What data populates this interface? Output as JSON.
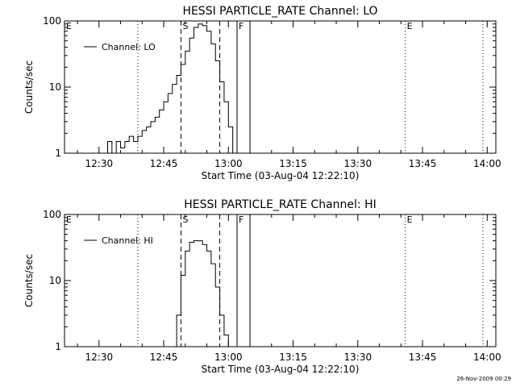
{
  "footer": {
    "date": "26-Nov-2009 00:29"
  },
  "chart_data": [
    {
      "type": "line",
      "title": "HESSI PARTICLE_RATE Channel: LO",
      "xlabel": "Start Time (03-Aug-04 12:22:10)",
      "ylabel": "Counts/sec",
      "xlim": [
        "12:22",
        "14:02"
      ],
      "ylim": [
        1,
        100
      ],
      "yscale": "log",
      "x_ticks": [
        "12:30",
        "12:45",
        "13:00",
        "13:15",
        "13:30",
        "13:45",
        "14:00"
      ],
      "y_ticks": [
        "1",
        "10",
        "100"
      ],
      "legend": {
        "placement": "top-left",
        "label": "Channel: LO"
      },
      "markers": [
        {
          "label": "E",
          "time": "12:22",
          "style": "none"
        },
        {
          "label": "",
          "time": "12:39",
          "style": "dotted"
        },
        {
          "label": "S",
          "time": "12:49",
          "style": "dashed"
        },
        {
          "label": "",
          "time": "12:58",
          "style": "dashed"
        },
        {
          "label": "F",
          "time": "13:02",
          "style": "solid"
        },
        {
          "label": "",
          "time": "13:05",
          "style": "solid"
        },
        {
          "label": "E",
          "time": "13:41",
          "style": "dotted"
        },
        {
          "label": "",
          "time": "13:59",
          "style": "dotted"
        }
      ],
      "series": [
        {
          "name": "Channel: LO",
          "x": [
            "12:31",
            "12:32",
            "12:33",
            "12:34",
            "12:35",
            "12:36",
            "12:37",
            "12:38",
            "12:39",
            "12:40",
            "12:41",
            "12:42",
            "12:43",
            "12:44",
            "12:45",
            "12:46",
            "12:47",
            "12:48",
            "12:49",
            "12:50",
            "12:51",
            "12:52",
            "12:53",
            "12:54",
            "12:55",
            "12:56",
            "12:57",
            "12:58",
            "12:59",
            "13:00",
            "13:01"
          ],
          "y": [
            1,
            1.5,
            1,
            1.5,
            1.2,
            1.5,
            1.8,
            1.5,
            1.8,
            2.2,
            2.5,
            3,
            3.5,
            4.5,
            6,
            8,
            11,
            15,
            22,
            35,
            55,
            80,
            90,
            85,
            70,
            45,
            25,
            12,
            6,
            2.5,
            1
          ]
        }
      ]
    },
    {
      "type": "line",
      "title": "HESSI PARTICLE_RATE Channel: HI",
      "xlabel": "Start Time (03-Aug-04 12:22:10)",
      "ylabel": "Counts/sec",
      "xlim": [
        "12:22",
        "14:02"
      ],
      "ylim": [
        1,
        100
      ],
      "yscale": "log",
      "x_ticks": [
        "12:30",
        "12:45",
        "13:00",
        "13:15",
        "13:30",
        "13:45",
        "14:00"
      ],
      "y_ticks": [
        "1",
        "10",
        "100"
      ],
      "legend": {
        "placement": "top-left",
        "label": "Channel: HI"
      },
      "markers": [
        {
          "label": "E",
          "time": "12:22",
          "style": "none"
        },
        {
          "label": "",
          "time": "12:39",
          "style": "dotted"
        },
        {
          "label": "S",
          "time": "12:49",
          "style": "dashed"
        },
        {
          "label": "",
          "time": "12:58",
          "style": "dashed"
        },
        {
          "label": "F",
          "time": "13:02",
          "style": "solid"
        },
        {
          "label": "",
          "time": "13:05",
          "style": "solid"
        },
        {
          "label": "E",
          "time": "13:41",
          "style": "dotted"
        },
        {
          "label": "",
          "time": "13:59",
          "style": "dotted"
        }
      ],
      "series": [
        {
          "name": "Channel: HI",
          "x": [
            "12:47",
            "12:48",
            "12:49",
            "12:50",
            "12:51",
            "12:52",
            "12:53",
            "12:54",
            "12:55",
            "12:56",
            "12:57",
            "12:58",
            "12:59",
            "13:00"
          ],
          "y": [
            1,
            3,
            12,
            28,
            38,
            40,
            40,
            35,
            28,
            18,
            8,
            3,
            1.5,
            1
          ]
        }
      ]
    }
  ]
}
